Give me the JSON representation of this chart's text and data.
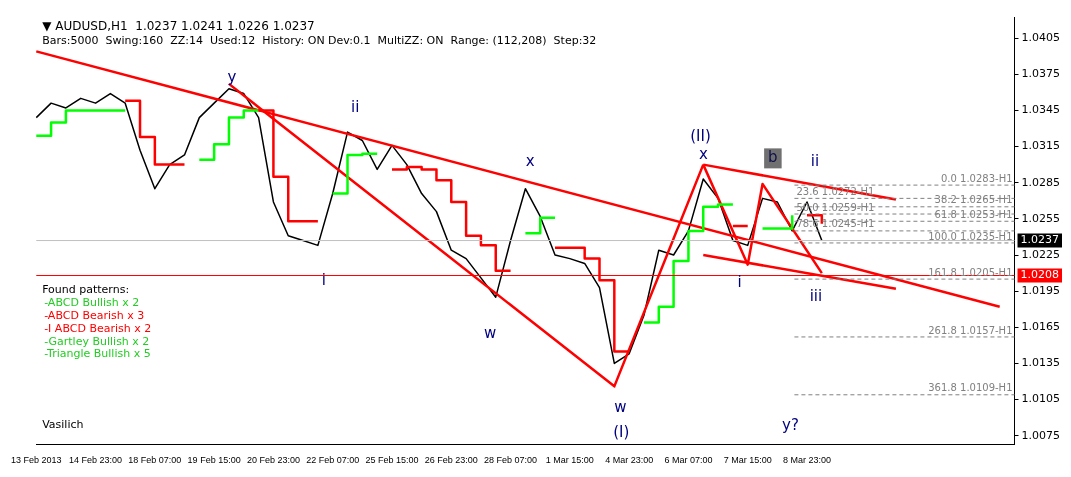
{
  "chart_data": {
    "type": "line",
    "title": "▼ AUDUSD,H1  1.0237 1.0241 1.0226 1.0237",
    "subtitle": "Bars:5000  Swing:160  ZZ:14  Used:12  History: ON Dev:0.1  MultiZZ: ON  Range: (112,208)  Step:32",
    "categories": [
      "13 Feb 2013",
      null,
      null,
      null,
      "14 Feb 23:00",
      null,
      null,
      null,
      "18 Feb 07:00",
      null,
      null,
      null,
      "19 Feb 15:00",
      null,
      null,
      null,
      "20 Feb 23:00",
      null,
      null,
      null,
      "22 Feb 07:00",
      null,
      null,
      null,
      "25 Feb 15:00",
      null,
      null,
      null,
      "26 Feb 23:00",
      null,
      null,
      null,
      "28 Feb 07:00",
      null,
      null,
      null,
      "1 Mar 15:00",
      null,
      null,
      null,
      "4 Mar 23:00",
      null,
      null,
      null,
      "6 Mar 07:00",
      null,
      null,
      null,
      "7 Mar 15:00",
      null,
      null,
      null,
      "8 Mar 23:00",
      null,
      null,
      null,
      null,
      null,
      null,
      null,
      null,
      null,
      null,
      null,
      null,
      null,
      null
    ],
    "series": [
      {
        "color": "#000000",
        "values": [
          1.0339,
          1.0351,
          1.0347,
          1.0355,
          1.0351,
          1.0359,
          1.0351,
          1.0312,
          1.028,
          1.03,
          1.0308,
          1.0339,
          1.0351,
          1.0363,
          1.0359,
          1.0339,
          1.0269,
          1.0241,
          1.0237,
          1.0233,
          1.0276,
          1.0327,
          1.032,
          1.0296,
          1.0316,
          1.03,
          1.0276,
          1.0261,
          1.0229,
          1.0222,
          1.0206,
          1.019,
          1.0237,
          1.028,
          1.0257,
          1.0225,
          1.0222,
          1.0218,
          1.0198,
          1.0135,
          1.0143,
          1.0175,
          1.0229,
          1.0225,
          1.0245,
          1.0288,
          1.0272,
          1.0237,
          1.0233,
          1.0272,
          1.0269,
          1.0245,
          1.0269,
          1.0237,
          null,
          null,
          null,
          null,
          null,
          null,
          null,
          null,
          null,
          null,
          null,
          null,
          null
        ]
      },
      {
        "type": "step",
        "color": "#ff0000",
        "values": [
          null,
          null,
          null,
          null,
          null,
          null,
          1.0353,
          1.0323,
          1.03,
          1.03,
          1.03,
          null,
          null,
          null,
          null,
          1.0345,
          1.029,
          1.0253,
          1.0253,
          1.0253,
          null,
          null,
          null,
          null,
          1.0296,
          1.0298,
          1.0296,
          1.0287,
          1.0269,
          1.0241,
          1.0233,
          1.0212,
          1.0212,
          null,
          null,
          1.0231,
          1.0231,
          1.0222,
          1.0204,
          1.0145,
          1.0145,
          null,
          null,
          null,
          null,
          null,
          null,
          1.0249,
          1.0249,
          null,
          null,
          null,
          1.0258,
          1.0251,
          null,
          null,
          null,
          null,
          null,
          null,
          null,
          null,
          null,
          null,
          null,
          null,
          null
        ]
      },
      {
        "type": "step",
        "color": "#00ff00",
        "values": [
          1.0324,
          1.0335,
          1.0345,
          1.0345,
          1.0345,
          1.0345,
          1.0345,
          null,
          null,
          null,
          null,
          1.0304,
          1.0317,
          1.0339,
          1.0345,
          1.0345,
          null,
          null,
          null,
          null,
          1.0276,
          1.0308,
          1.0309,
          1.0309,
          null,
          null,
          null,
          null,
          null,
          null,
          null,
          null,
          null,
          1.0243,
          1.0256,
          1.0256,
          null,
          null,
          null,
          null,
          null,
          1.0169,
          1.0182,
          1.022,
          1.0245,
          1.0265,
          1.0267,
          1.0267,
          null,
          1.0247,
          1.0247,
          1.0258,
          null,
          null,
          null,
          null,
          null,
          null,
          null,
          null,
          null,
          null,
          null,
          null,
          null,
          null,
          null
        ]
      },
      {
        "type": "line",
        "color": "#ff0000",
        "values": [
          1.0394,
          null,
          null,
          null,
          null,
          null,
          null,
          null,
          null,
          null,
          null,
          null,
          null,
          null,
          null,
          null,
          null,
          null,
          null,
          null,
          null,
          null,
          null,
          null,
          null,
          null,
          null,
          null,
          null,
          null,
          null,
          null,
          null,
          null,
          null,
          null,
          null,
          null,
          null,
          null,
          null,
          null,
          null,
          null,
          null,
          null,
          null,
          null,
          null,
          null,
          null,
          null,
          null,
          null,
          null,
          null,
          null,
          null,
          null,
          null,
          null,
          null,
          null,
          null,
          null,
          1.0182,
          null
        ]
      },
      {
        "type": "line",
        "color": "#ff0000",
        "values": [
          null,
          null,
          null,
          null,
          null,
          null,
          null,
          null,
          null,
          null,
          null,
          null,
          null,
          1.0367,
          null,
          null,
          null,
          null,
          null,
          null,
          null,
          null,
          null,
          null,
          null,
          null,
          null,
          null,
          null,
          null,
          null,
          null,
          null,
          null,
          null,
          null,
          null,
          null,
          null,
          1.0116,
          null,
          null,
          null,
          null,
          null,
          1.03,
          null,
          null,
          null,
          null,
          null,
          null,
          null,
          null,
          null,
          null,
          null,
          null,
          null,
          null,
          null,
          null,
          null,
          null,
          null,
          null,
          null
        ]
      },
      {
        "type": "line",
        "color": "#ff0000",
        "values": [
          null,
          null,
          null,
          null,
          null,
          null,
          null,
          null,
          null,
          null,
          null,
          null,
          null,
          null,
          null,
          null,
          null,
          null,
          null,
          null,
          null,
          null,
          null,
          null,
          null,
          null,
          null,
          null,
          null,
          null,
          null,
          null,
          null,
          null,
          null,
          null,
          null,
          null,
          null,
          null,
          null,
          null,
          null,
          null,
          null,
          1.03,
          null,
          null,
          null,
          null,
          null,
          null,
          null,
          null,
          null,
          null,
          null,
          null,
          1.0271,
          null,
          null,
          null,
          null,
          null,
          null,
          null,
          null
        ]
      },
      {
        "type": "line",
        "color": "#ff0000",
        "values": [
          null,
          null,
          null,
          null,
          null,
          null,
          null,
          null,
          null,
          null,
          null,
          null,
          null,
          null,
          null,
          null,
          null,
          null,
          null,
          null,
          null,
          null,
          null,
          null,
          null,
          null,
          null,
          null,
          null,
          null,
          null,
          null,
          null,
          null,
          null,
          null,
          null,
          null,
          null,
          null,
          null,
          null,
          null,
          null,
          null,
          1.0225,
          null,
          null,
          null,
          null,
          null,
          null,
          null,
          null,
          null,
          null,
          null,
          null,
          1.0197,
          null,
          null,
          null,
          null,
          null,
          null,
          null,
          null
        ]
      },
      {
        "type": "line",
        "color": "#ff0000",
        "values": [
          null,
          null,
          null,
          null,
          null,
          null,
          null,
          null,
          null,
          null,
          null,
          null,
          null,
          null,
          null,
          null,
          null,
          null,
          null,
          null,
          null,
          null,
          null,
          null,
          null,
          null,
          null,
          null,
          null,
          null,
          null,
          null,
          null,
          null,
          null,
          null,
          null,
          null,
          null,
          null,
          null,
          null,
          null,
          null,
          null,
          1.03,
          null,
          null,
          1.0217,
          1.0284,
          null,
          null,
          null,
          1.021,
          null,
          null,
          null,
          null,
          null,
          null,
          null,
          null,
          null,
          null,
          null,
          null,
          null
        ]
      }
    ],
    "ylim": [
      1.0068,
      1.0422
    ],
    "yticks": [
      1.0405,
      1.0375,
      1.0345,
      1.0315,
      1.0285,
      1.0255,
      1.0225,
      1.0195,
      1.0165,
      1.0135,
      1.0105,
      1.0075
    ],
    "grid": false,
    "legend": false,
    "marker": "none",
    "line_style": "solid",
    "ref_lines": [
      {
        "axis": "y",
        "value": 1.0237,
        "label": "1.0237",
        "color": "#c0c0c0",
        "line_style": "solid"
      },
      {
        "axis": "y",
        "value": 1.0208,
        "label": "1.0208",
        "color": "#ff0000",
        "line_style": "solid"
      },
      {
        "axis": "y",
        "value": 1.0283,
        "label": "0.0 1.0283-H1",
        "color": "#808080",
        "line_style": "dashed"
      },
      {
        "axis": "y",
        "value": 1.0272,
        "label": "23.6 1.0272-H1",
        "color": "#808080",
        "line_style": "dashed"
      },
      {
        "axis": "y",
        "value": 1.0265,
        "label": "38.2 1.0265-H1",
        "color": "#808080",
        "line_style": "dashed"
      },
      {
        "axis": "y",
        "value": 1.0259,
        "label": "50.0 1.0259-H1",
        "color": "#808080",
        "line_style": "dashed"
      },
      {
        "axis": "y",
        "value": 1.0253,
        "label": "61.8 1.0253-H1",
        "color": "#808080",
        "line_style": "dashed"
      },
      {
        "axis": "y",
        "value": 1.0245,
        "label": "78.6 1.0245-H1",
        "color": "#808080",
        "line_style": "dashed"
      },
      {
        "axis": "y",
        "value": 1.0235,
        "label": "100.0 1.0235-H1",
        "color": "#808080",
        "line_style": "dashed"
      },
      {
        "axis": "y",
        "value": 1.0205,
        "label": "161.8 1.0205-H1",
        "color": "#808080",
        "line_style": "dashed"
      },
      {
        "axis": "y",
        "value": 1.0157,
        "label": "261.8 1.0157-H1",
        "color": "#808080",
        "line_style": "dashed"
      },
      {
        "axis": "y",
        "value": 1.0109,
        "label": "361.8 1.0109-H1",
        "color": "#808080",
        "line_style": "dashed"
      }
    ],
    "annotations": [
      "Found patterns:",
      "-ABCD Bullish x 2",
      "-ABCD Bearish x 3",
      "-I ABCD Bearish x 2",
      "-Gartley Bullish x 2",
      "-Triangle Bullish x 5",
      "Vasilich",
      "y",
      "ii",
      "i",
      "x",
      "w",
      "w",
      "(I)",
      "(II)",
      "x",
      "b",
      "ii",
      "i",
      "iii",
      "y?"
    ]
  }
}
